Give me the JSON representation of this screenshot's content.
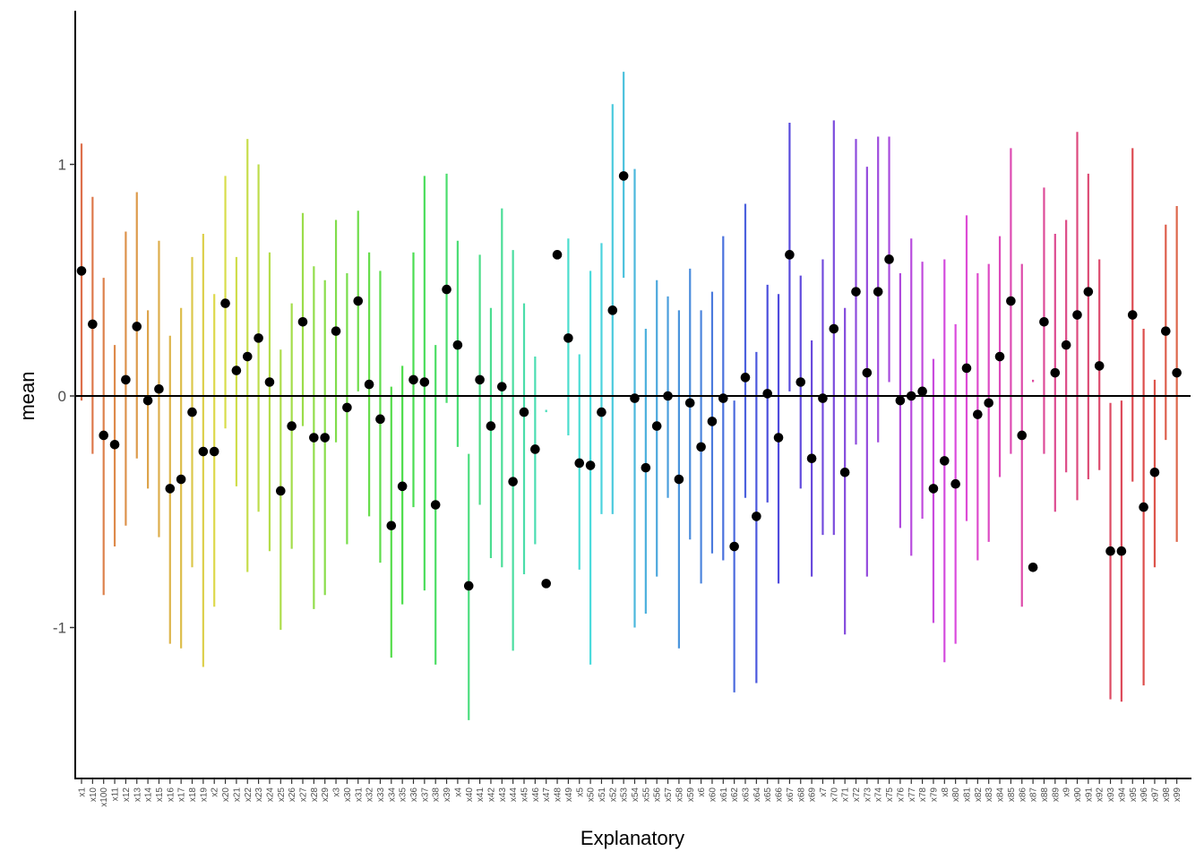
{
  "chart_data": {
    "type": "errorbar",
    "xlabel": "Explanatory",
    "ylabel": "mean",
    "ylim": [
      -1.65,
      1.65
    ],
    "yticks": [
      -1,
      0,
      1
    ],
    "ytick_labels": [
      "-1",
      "0",
      "1"
    ],
    "reference_line": 0,
    "legend": "none",
    "grid": false,
    "categories": [
      "x1",
      "x10",
      "x100",
      "x11",
      "x12",
      "x13",
      "x14",
      "x15",
      "x16",
      "x17",
      "x18",
      "x19",
      "x2",
      "x20",
      "x21",
      "x22",
      "x23",
      "x24",
      "x25",
      "x26",
      "x27",
      "x28",
      "x29",
      "x3",
      "x30",
      "x31",
      "x32",
      "x33",
      "x34",
      "x35",
      "x36",
      "x37",
      "x38",
      "x39",
      "x4",
      "x40",
      "x41",
      "x42",
      "x43",
      "x44",
      "x45",
      "x46",
      "x47",
      "x48",
      "x49",
      "x5",
      "x50",
      "x51",
      "x52",
      "x53",
      "x54",
      "x55",
      "x56",
      "x57",
      "x58",
      "x59",
      "x6",
      "x60",
      "x61",
      "x62",
      "x63",
      "x64",
      "x65",
      "x66",
      "x67",
      "x68",
      "x69",
      "x7",
      "x70",
      "x71",
      "x72",
      "x73",
      "x74",
      "x75",
      "x76",
      "x77",
      "x78",
      "x79",
      "x8",
      "x80",
      "x81",
      "x82",
      "x83",
      "x84",
      "x85",
      "x86",
      "x87",
      "x88",
      "x89",
      "x9",
      "x90",
      "x91",
      "x92",
      "x93",
      "x94",
      "x95",
      "x96",
      "x97",
      "x98",
      "x99"
    ],
    "mean": [
      0.54,
      0.31,
      -0.17,
      -0.21,
      0.07,
      0.3,
      -0.02,
      0.03,
      -0.4,
      -0.36,
      -0.07,
      -0.24,
      -0.24,
      0.4,
      0.11,
      0.17,
      0.25,
      0.06,
      -0.41,
      -0.13,
      0.32,
      -0.18,
      -0.18,
      0.28,
      -0.05,
      0.41,
      0.05,
      -0.1,
      -0.56,
      -0.39,
      0.07,
      0.06,
      -0.47,
      0.46,
      0.22,
      -0.82,
      0.07,
      -0.13,
      0.04,
      -0.37,
      -0.07,
      -0.23,
      -0.81,
      0.61,
      0.25,
      -0.29,
      -0.3,
      -0.07,
      0.37,
      0.95,
      -0.01,
      -0.31,
      -0.13,
      0.0,
      -0.36,
      -0.03,
      -0.22,
      -0.11,
      -0.01,
      -0.65,
      0.08,
      -0.52,
      0.01,
      -0.18,
      0.61,
      0.06,
      -0.27,
      -0.01,
      0.29,
      -0.33,
      0.45,
      0.1,
      0.45,
      0.59,
      -0.02,
      0.0,
      0.02,
      -0.4,
      -0.28,
      -0.38,
      0.12,
      -0.08,
      -0.03,
      0.17,
      0.41,
      -0.17,
      -0.74,
      0.32,
      0.1,
      0.22,
      0.35,
      0.45,
      0.13,
      -0.67,
      -0.67,
      0.35,
      -0.48,
      -0.33,
      0.28,
      0.1
    ],
    "lower": [
      -0.02,
      -0.25,
      -0.86,
      -0.65,
      -0.56,
      -0.27,
      -0.4,
      -0.61,
      -1.07,
      -1.09,
      -0.74,
      -1.17,
      -0.91,
      -0.14,
      -0.39,
      -0.76,
      -0.5,
      -0.67,
      -1.01,
      -0.66,
      -0.13,
      -0.92,
      -0.86,
      -0.2,
      -0.64,
      0.02,
      -0.52,
      -0.72,
      -1.13,
      -0.9,
      -0.48,
      -0.84,
      -1.16,
      -0.03,
      -0.22,
      -1.4,
      -0.47,
      -0.7,
      -0.74,
      -1.1,
      -0.77,
      -0.64,
      -0.07,
      0.6,
      -0.17,
      -0.75,
      -1.16,
      -0.51,
      -0.51,
      0.51,
      -1.0,
      -0.94,
      -0.78,
      -0.44,
      -1.09,
      -0.62,
      -0.81,
      -0.68,
      -0.71,
      -1.28,
      -0.44,
      -1.24,
      -0.46,
      -0.81,
      0.02,
      -0.4,
      -0.78,
      -0.6,
      -0.6,
      -1.03,
      -0.21,
      -0.78,
      -0.2,
      0.06,
      -0.57,
      -0.69,
      -0.53,
      -0.98,
      -1.15,
      -1.07,
      -0.54,
      -0.71,
      -0.63,
      -0.35,
      -0.25,
      -0.91,
      0.06,
      -0.25,
      -0.5,
      -0.33,
      -0.45,
      -0.36,
      -0.32,
      -1.31,
      -1.32,
      -0.37,
      -1.25,
      -0.74,
      -0.19,
      -0.63
    ],
    "upper": [
      1.09,
      0.86,
      0.51,
      0.22,
      0.71,
      0.88,
      0.37,
      0.67,
      0.26,
      0.38,
      0.6,
      0.7,
      0.44,
      0.95,
      0.6,
      1.11,
      1.0,
      0.62,
      0.2,
      0.4,
      0.79,
      0.56,
      0.5,
      0.76,
      0.53,
      0.8,
      0.62,
      0.54,
      0.04,
      0.13,
      0.62,
      0.95,
      0.22,
      0.96,
      0.67,
      -0.25,
      0.61,
      0.38,
      0.81,
      0.63,
      0.4,
      0.17,
      -0.06,
      0.61,
      0.68,
      0.18,
      0.54,
      0.66,
      1.26,
      1.4,
      0.98,
      0.29,
      0.5,
      0.43,
      0.37,
      0.55,
      0.37,
      0.45,
      0.69,
      -0.02,
      0.83,
      0.19,
      0.48,
      0.44,
      1.18,
      0.52,
      0.24,
      0.59,
      1.19,
      0.38,
      1.11,
      0.99,
      1.12,
      1.12,
      0.53,
      0.68,
      0.58,
      0.16,
      0.59,
      0.31,
      0.78,
      0.53,
      0.57,
      0.69,
      1.07,
      0.57,
      0.07,
      0.9,
      0.7,
      0.76,
      1.14,
      0.96,
      0.59,
      -0.03,
      -0.02,
      1.07,
      0.29,
      0.07,
      0.74,
      0.82
    ]
  }
}
